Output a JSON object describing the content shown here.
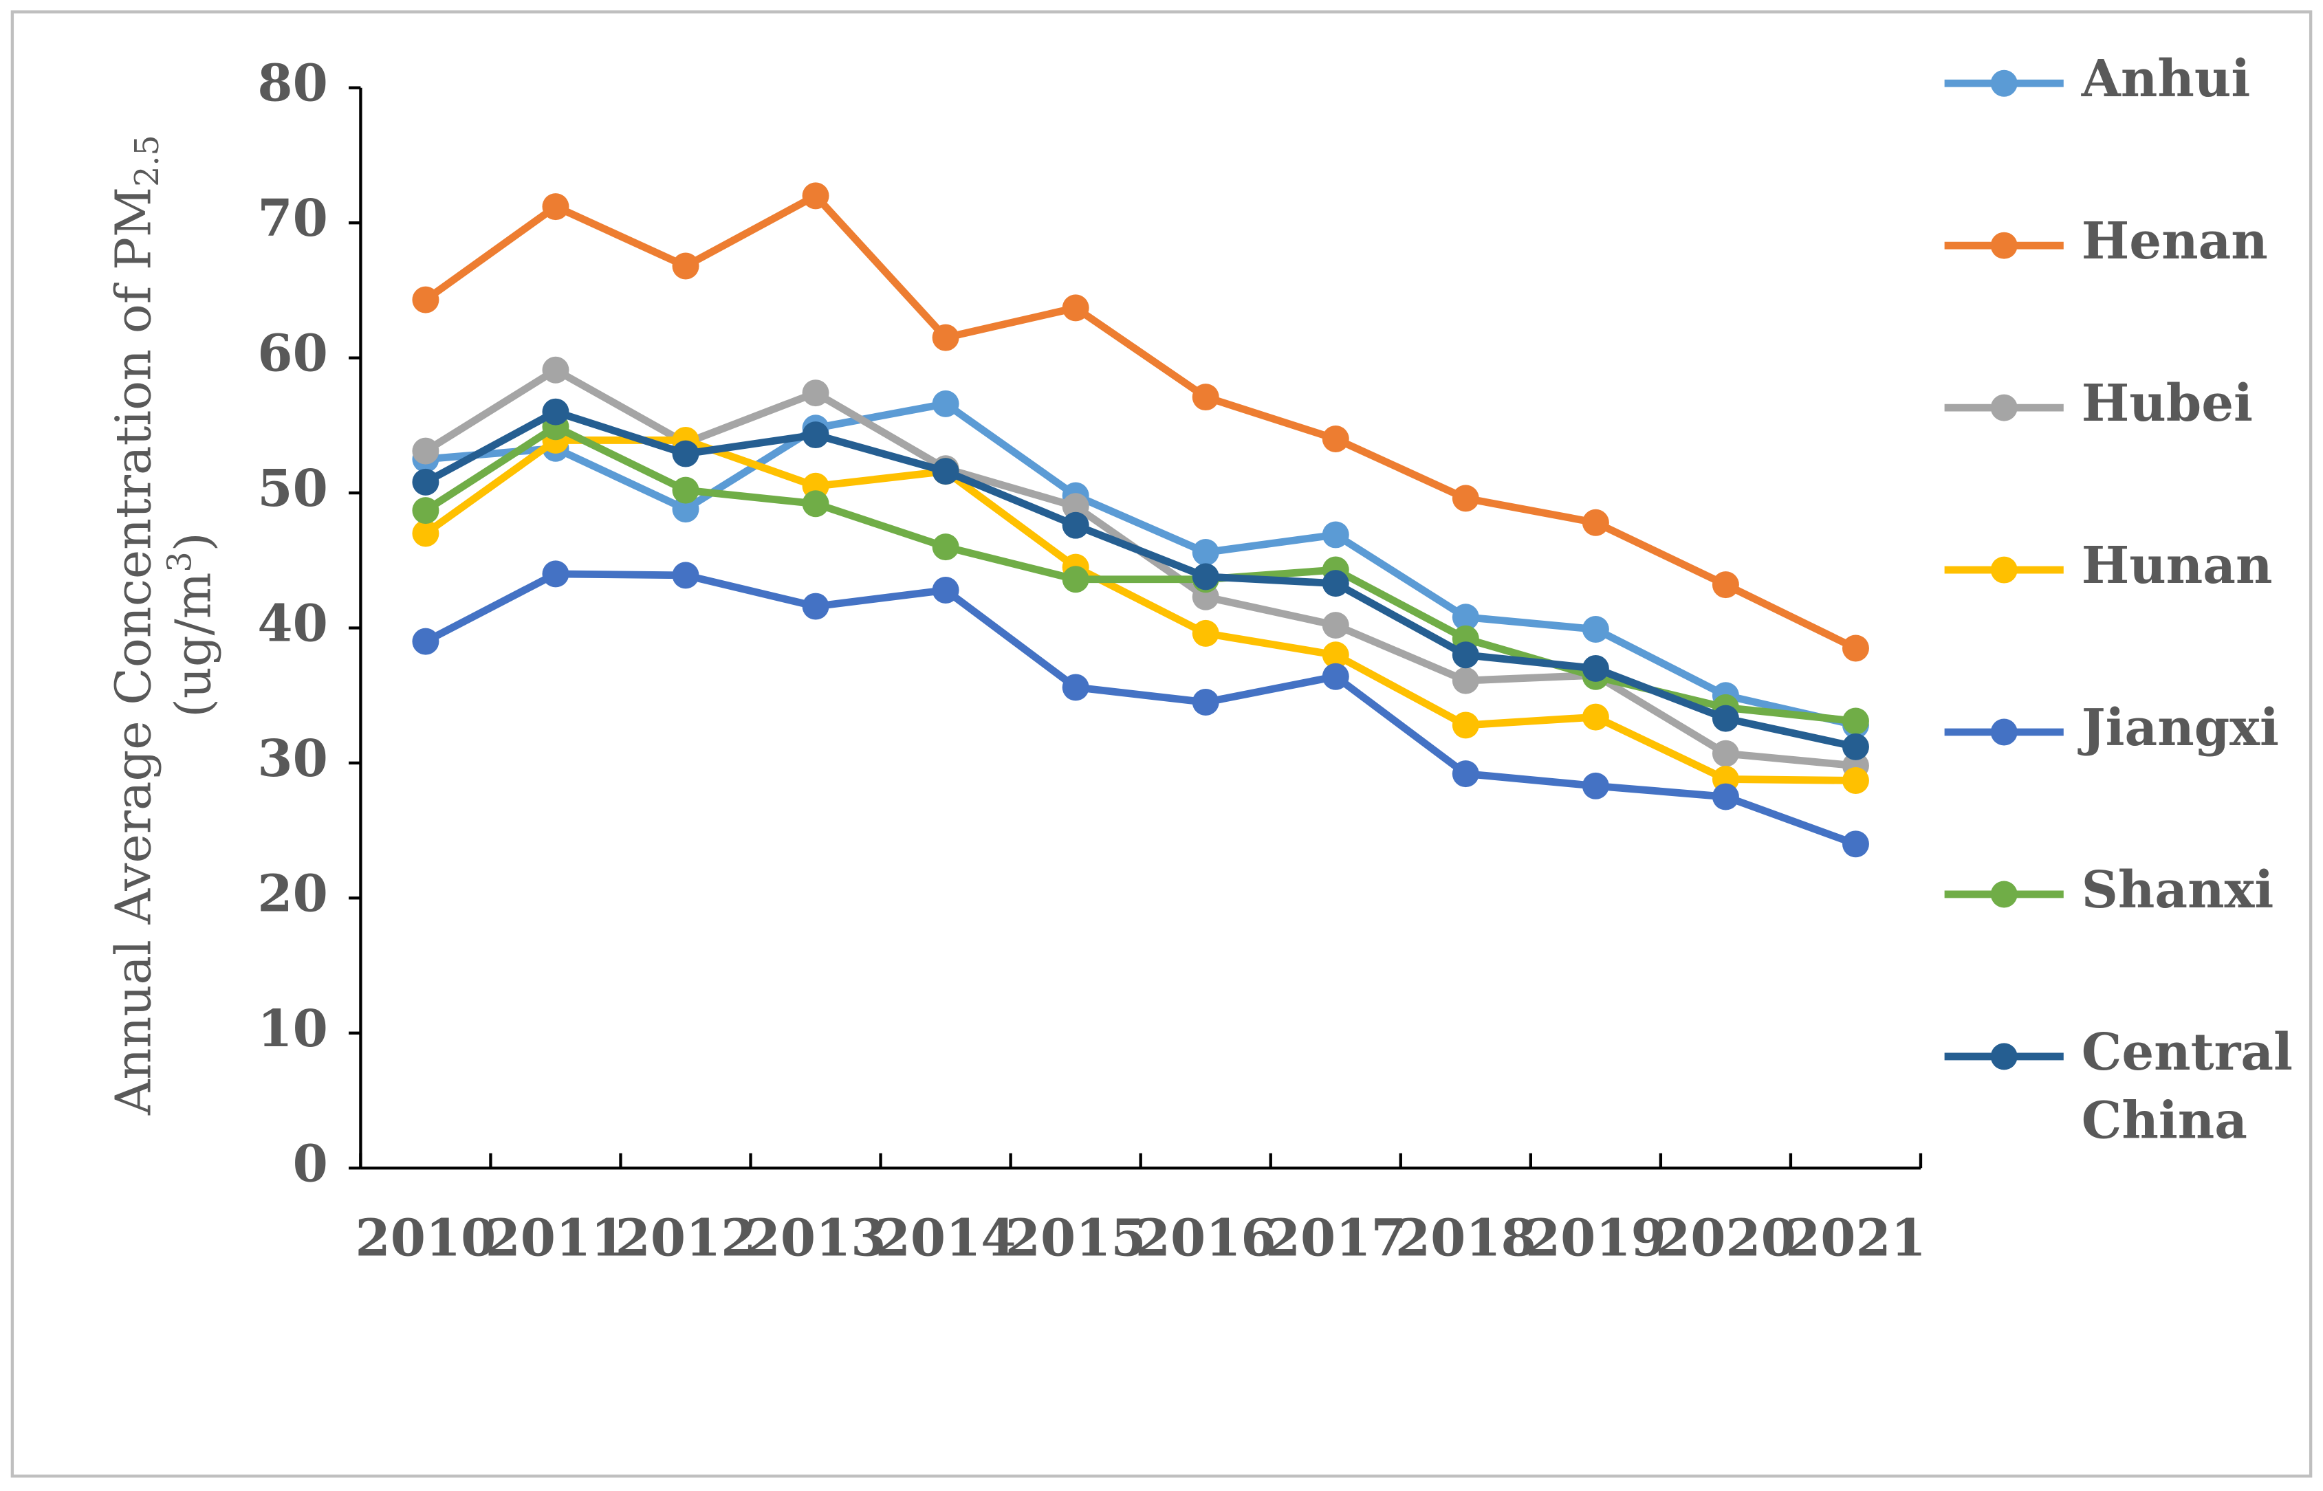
{
  "chart_data": {
    "type": "line",
    "y_label": {
      "main": "Annual Average Concentration of PM",
      "sub": "2.5",
      "unit_open": "(ug/m",
      "unit_sup": "3",
      "unit_close": ")"
    },
    "categories": [
      "2010",
      "2011",
      "2012",
      "2013",
      "2014",
      "2015",
      "2016",
      "2017",
      "2018",
      "2019",
      "2020",
      "2021"
    ],
    "ylim": [
      0,
      80
    ],
    "yticks": [
      0,
      10,
      20,
      30,
      40,
      50,
      60,
      70,
      80
    ],
    "legend": "right",
    "series": [
      {
        "name": "Anhui",
        "color": "#5b9bd5",
        "values": [
          52.5,
          53.3,
          48.8,
          54.8,
          56.6,
          49.8,
          45.6,
          46.9,
          40.8,
          39.9,
          35.0,
          32.8
        ]
      },
      {
        "name": "Henan",
        "color": "#ed7d31",
        "values": [
          64.3,
          71.2,
          66.8,
          72.0,
          61.5,
          63.7,
          57.1,
          54.0,
          49.6,
          47.8,
          43.2,
          38.5
        ]
      },
      {
        "name": "Hubei",
        "color": "#a5a5a5",
        "values": [
          53.1,
          59.1,
          53.7,
          57.4,
          51.8,
          49.0,
          42.3,
          40.2,
          36.1,
          36.5,
          30.7,
          29.8
        ]
      },
      {
        "name": "Hunan",
        "color": "#ffc000",
        "values": [
          47.0,
          53.9,
          53.9,
          50.5,
          51.6,
          44.5,
          39.6,
          38.0,
          32.8,
          33.4,
          28.8,
          28.7
        ]
      },
      {
        "name": "Jiangxi",
        "color": "#4472c4",
        "values": [
          39.0,
          44.0,
          43.9,
          41.6,
          42.8,
          35.6,
          34.5,
          36.4,
          29.2,
          28.3,
          27.5,
          24.0
        ]
      },
      {
        "name": "Shanxi",
        "color": "#70ad47",
        "values": [
          48.7,
          54.9,
          50.2,
          49.2,
          46.0,
          43.6,
          43.6,
          44.3,
          39.2,
          36.4,
          34.1,
          33.1
        ]
      },
      {
        "name": "Central China",
        "color": "#255e91",
        "values": [
          50.8,
          56.0,
          52.9,
          54.3,
          51.6,
          47.6,
          43.8,
          43.3,
          38.0,
          37.0,
          33.3,
          31.2
        ]
      }
    ]
  }
}
